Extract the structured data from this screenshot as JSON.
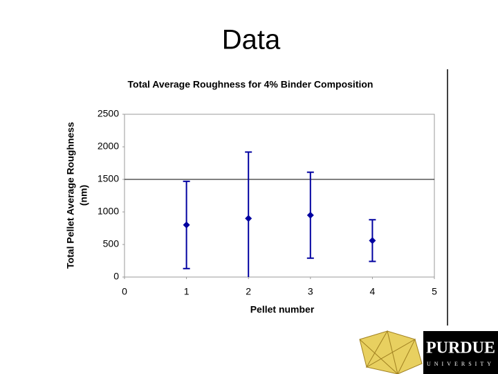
{
  "title": "Data",
  "chart_data": {
    "type": "scatter",
    "title": "Total Average Roughness for 4% Binder Composition",
    "xlabel": "Pellet number",
    "ylabel": [
      "Total Pellet Average Roughness",
      "(nm)"
    ],
    "x": [
      1,
      2,
      3,
      4
    ],
    "series": [
      {
        "color": "#0000a0",
        "values": [
          800,
          900,
          950,
          560
        ],
        "errors": [
          670,
          1020,
          660,
          320
        ]
      }
    ],
    "xlim": [
      0,
      5
    ],
    "xticks": [
      0,
      1,
      2,
      3,
      4,
      5
    ],
    "ylim": [
      0,
      2500
    ],
    "yticks": [
      0,
      500,
      1000,
      1500,
      2000,
      2500
    ],
    "reference_lines": [
      1500
    ]
  },
  "logo": {
    "name": "PURDUE",
    "subtitle": "UNIVERSITY"
  }
}
